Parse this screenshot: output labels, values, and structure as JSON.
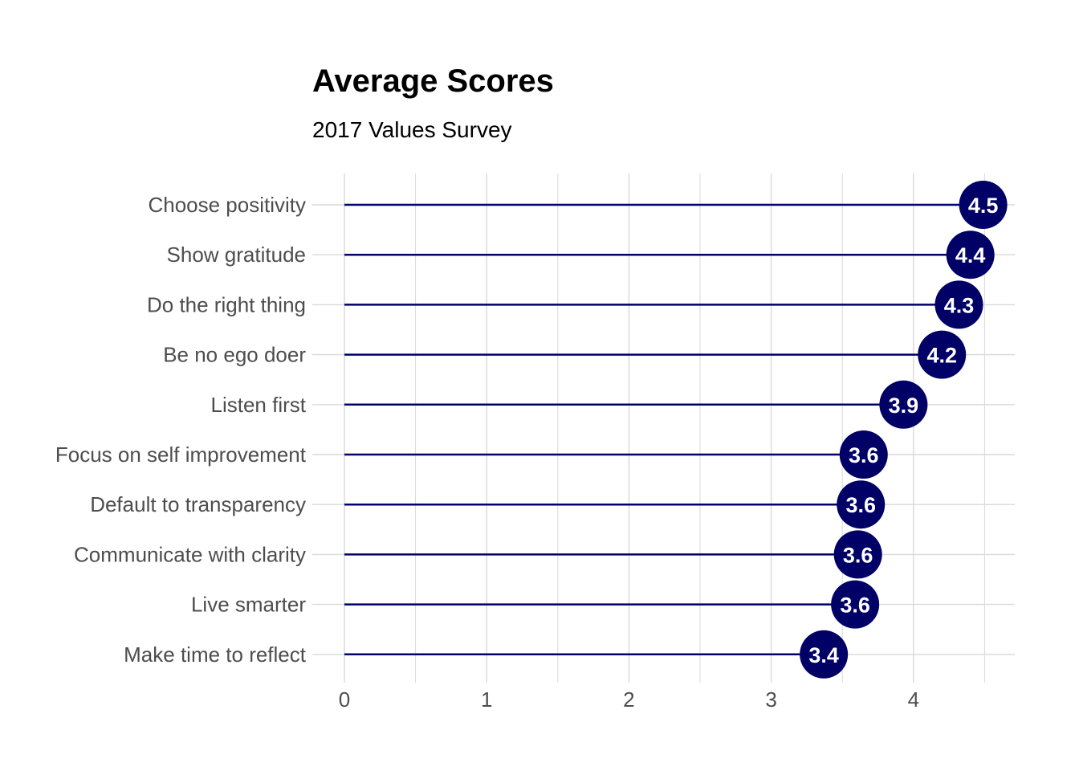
{
  "chart_data": {
    "type": "lollipop",
    "title": "Average Scores",
    "subtitle": "2017 Values Survey",
    "xlabel": "",
    "ylabel": "",
    "categories": [
      "Choose positivity",
      "Show gratitude",
      "Do the right thing",
      "Be no ego doer",
      "Listen first",
      "Focus on self improvement",
      "Default to transparency",
      "Communicate with clarity",
      "Live smarter",
      "Make time to reflect"
    ],
    "values": [
      4.49,
      4.4,
      4.32,
      4.2,
      3.93,
      3.65,
      3.63,
      3.61,
      3.59,
      3.37
    ],
    "value_labels": [
      "4.5",
      "4.4",
      "4.3",
      "4.2",
      "3.9",
      "3.6",
      "3.6",
      "3.6",
      "3.6",
      "3.4"
    ],
    "x_ticks": [
      0,
      1,
      2,
      3,
      4
    ],
    "xlim": [
      0,
      4.7
    ],
    "grid": true,
    "legend": "none",
    "colors": {
      "mark": "#000066",
      "grid": "#d9d9d9",
      "value_text": "#ffffff"
    }
  }
}
